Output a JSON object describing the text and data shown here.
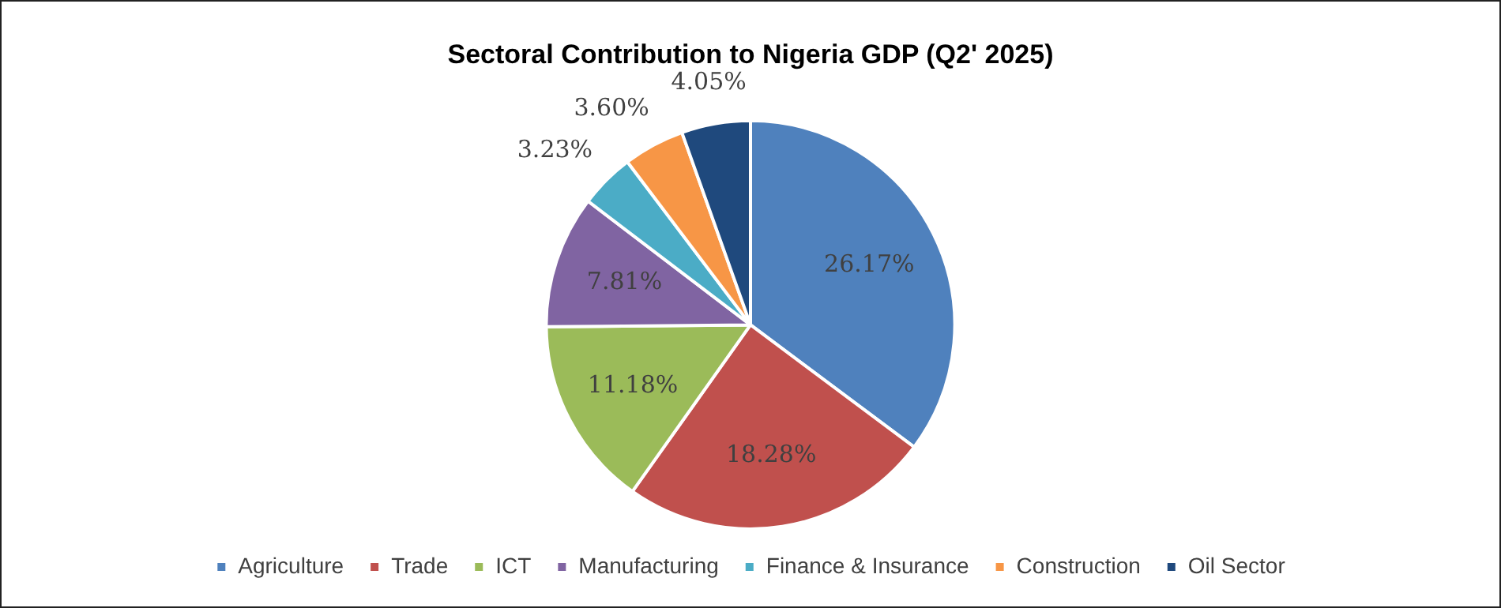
{
  "chart_data": {
    "type": "pie",
    "title": "Sectoral Contribution to Nigeria GDP (Q2' 2025)",
    "categories": [
      "Agriculture",
      "Trade",
      "ICT",
      "Manufacturing",
      "Finance & Insurance",
      "Construction",
      "Oil Sector"
    ],
    "values": [
      26.17,
      18.28,
      11.18,
      7.81,
      3.23,
      3.6,
      4.05
    ],
    "value_labels": [
      "26.17%",
      "18.28%",
      "11.18%",
      "7.81%",
      "3.23%",
      "3.60%",
      "4.05%"
    ],
    "colors": [
      "#4f81bd",
      "#c0504d",
      "#9bbb59",
      "#8064a2",
      "#4bacc6",
      "#f79646",
      "#1f497d"
    ],
    "legend": "bottom"
  }
}
